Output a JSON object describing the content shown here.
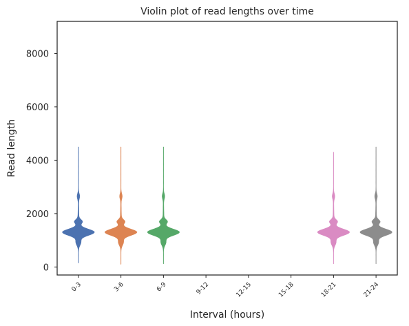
{
  "chart_data": {
    "type": "violin",
    "title": "Violin plot of read lengths over time",
    "xlabel": "Interval (hours)",
    "ylabel": "Read length",
    "ylim": [
      -300,
      9200
    ],
    "yticks": [
      0,
      2000,
      4000,
      6000,
      8000
    ],
    "categories": [
      "0-3",
      "3-6",
      "6-9",
      "9-12",
      "12-15",
      "15-18",
      "18-21",
      "21-24"
    ],
    "grid": false,
    "legend": "none",
    "series": [
      {
        "category": "0-3",
        "color": "#4c72b0",
        "has_data": true,
        "min": 150,
        "median": 1300,
        "max": 4500
      },
      {
        "category": "3-6",
        "color": "#dd8452",
        "has_data": true,
        "min": 100,
        "median": 1300,
        "max": 4500
      },
      {
        "category": "6-9",
        "color": "#55a868",
        "has_data": true,
        "min": 120,
        "median": 1300,
        "max": 4500
      },
      {
        "category": "9-12",
        "color": "#c44e52",
        "has_data": false
      },
      {
        "category": "12-15",
        "color": "#8172b3",
        "has_data": false
      },
      {
        "category": "15-18",
        "color": "#937860",
        "has_data": false
      },
      {
        "category": "18-21",
        "color": "#da8bc3",
        "has_data": true,
        "min": 120,
        "median": 1300,
        "max": 4300
      },
      {
        "category": "21-24",
        "color": "#8c8c8c",
        "has_data": true,
        "min": 120,
        "median": 1300,
        "max": 4500
      }
    ]
  }
}
